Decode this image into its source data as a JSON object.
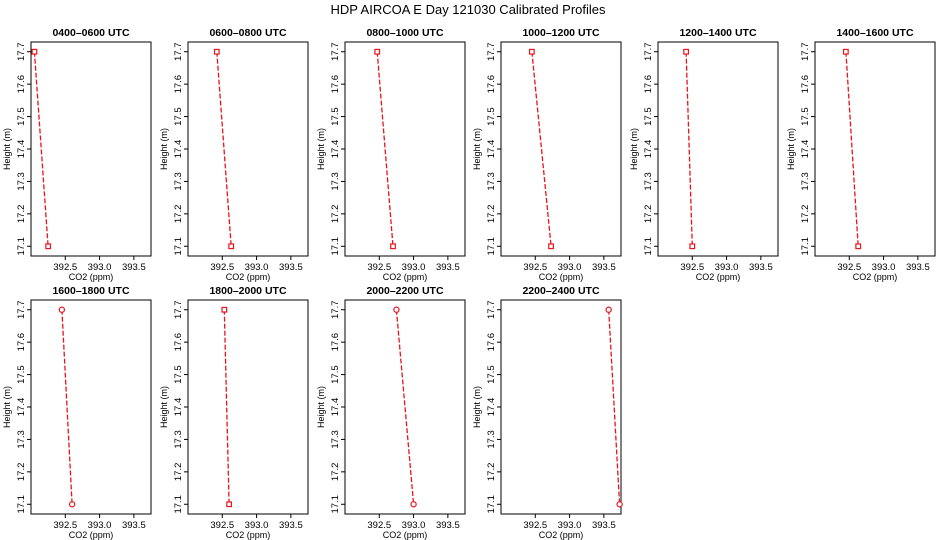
{
  "figure_title": "HDP AIRCOA E  Day 121030  Calibrated Profiles",
  "chart_data": [
    {
      "type": "line",
      "title": "0400–0600 UTC",
      "xlabel": "CO2 (ppm)",
      "ylabel": "Height (m)",
      "xlim": [
        392.0,
        393.75
      ],
      "ylim": [
        17.07,
        17.73
      ],
      "xticks": [
        "392.5",
        "393.0",
        "393.5"
      ],
      "yticks": [
        "17.1",
        "17.2",
        "17.3",
        "17.4",
        "17.5",
        "17.6",
        "17.7"
      ],
      "x": [
        392.05,
        392.25
      ],
      "y": [
        17.7,
        17.1
      ],
      "line_color": "#e8141c",
      "marker": "square"
    },
    {
      "type": "line",
      "title": "0600–0800 UTC",
      "xlabel": "CO2 (ppm)",
      "ylabel": "Height (m)",
      "xlim": [
        392.0,
        393.75
      ],
      "ylim": [
        17.07,
        17.73
      ],
      "xticks": [
        "392.5",
        "393.0",
        "393.5"
      ],
      "yticks": [
        "17.1",
        "17.2",
        "17.3",
        "17.4",
        "17.5",
        "17.6",
        "17.7"
      ],
      "x": [
        392.42,
        392.63
      ],
      "y": [
        17.7,
        17.1
      ],
      "line_color": "#e8141c",
      "marker": "square"
    },
    {
      "type": "line",
      "title": "0800–1000 UTC",
      "xlabel": "CO2 (ppm)",
      "ylabel": "Height (m)",
      "xlim": [
        392.0,
        393.75
      ],
      "ylim": [
        17.07,
        17.73
      ],
      "xticks": [
        "392.5",
        "393.0",
        "393.5"
      ],
      "yticks": [
        "17.1",
        "17.2",
        "17.3",
        "17.4",
        "17.5",
        "17.6",
        "17.7"
      ],
      "x": [
        392.47,
        392.7
      ],
      "y": [
        17.7,
        17.1
      ],
      "line_color": "#e8141c",
      "marker": "square"
    },
    {
      "type": "line",
      "title": "1000–1200 UTC",
      "xlabel": "CO2 (ppm)",
      "ylabel": "Height (m)",
      "xlim": [
        392.0,
        393.75
      ],
      "ylim": [
        17.07,
        17.73
      ],
      "xticks": [
        "392.5",
        "393.0",
        "393.5"
      ],
      "yticks": [
        "17.1",
        "17.2",
        "17.3",
        "17.4",
        "17.5",
        "17.6",
        "17.7"
      ],
      "x": [
        392.45,
        392.73
      ],
      "y": [
        17.7,
        17.1
      ],
      "line_color": "#e8141c",
      "marker": "square"
    },
    {
      "type": "line",
      "title": "1200–1400 UTC",
      "xlabel": "CO2 (ppm)",
      "ylabel": "Height (m)",
      "xlim": [
        392.0,
        393.75
      ],
      "ylim": [
        17.07,
        17.73
      ],
      "xticks": [
        "392.5",
        "393.0",
        "393.5"
      ],
      "yticks": [
        "17.1",
        "17.2",
        "17.3",
        "17.4",
        "17.5",
        "17.6",
        "17.7"
      ],
      "x": [
        392.41,
        392.5
      ],
      "y": [
        17.7,
        17.1
      ],
      "line_color": "#e8141c",
      "marker": "square"
    },
    {
      "type": "line",
      "title": "1400–1600 UTC",
      "xlabel": "CO2 (ppm)",
      "ylabel": "Height (m)",
      "xlim": [
        392.0,
        393.75
      ],
      "ylim": [
        17.07,
        17.73
      ],
      "xticks": [
        "392.5",
        "393.0",
        "393.5"
      ],
      "yticks": [
        "17.1",
        "17.2",
        "17.3",
        "17.4",
        "17.5",
        "17.6",
        "17.7"
      ],
      "x": [
        392.45,
        392.63
      ],
      "y": [
        17.7,
        17.1
      ],
      "line_color": "#e8141c",
      "marker": "square"
    },
    {
      "type": "line",
      "title": "1600–1800 UTC",
      "xlabel": "CO2 (ppm)",
      "ylabel": "Height (m)",
      "xlim": [
        392.0,
        393.75
      ],
      "ylim": [
        17.07,
        17.73
      ],
      "xticks": [
        "392.5",
        "393.0",
        "393.5"
      ],
      "yticks": [
        "17.1",
        "17.2",
        "17.3",
        "17.4",
        "17.5",
        "17.6",
        "17.7"
      ],
      "x": [
        392.45,
        392.6
      ],
      "y": [
        17.7,
        17.1
      ],
      "line_color": "#e8141c",
      "marker": "circle"
    },
    {
      "type": "line",
      "title": "1800–2000 UTC",
      "xlabel": "CO2 (ppm)",
      "ylabel": "Height (m)",
      "xlim": [
        392.0,
        393.75
      ],
      "ylim": [
        17.07,
        17.73
      ],
      "xticks": [
        "392.5",
        "393.0",
        "393.5"
      ],
      "yticks": [
        "17.1",
        "17.2",
        "17.3",
        "17.4",
        "17.5",
        "17.6",
        "17.7"
      ],
      "x": [
        392.53,
        392.6
      ],
      "y": [
        17.7,
        17.1
      ],
      "line_color": "#e8141c",
      "marker": "square"
    },
    {
      "type": "line",
      "title": "2000–2200 UTC",
      "xlabel": "CO2 (ppm)",
      "ylabel": "Height (m)",
      "xlim": [
        392.0,
        393.75
      ],
      "ylim": [
        17.07,
        17.73
      ],
      "xticks": [
        "392.5",
        "393.0",
        "393.5"
      ],
      "yticks": [
        "17.1",
        "17.2",
        "17.3",
        "17.4",
        "17.5",
        "17.6",
        "17.7"
      ],
      "x": [
        392.75,
        393.0
      ],
      "y": [
        17.7,
        17.1
      ],
      "line_color": "#e8141c",
      "marker": "circle"
    },
    {
      "type": "line",
      "title": "2200–2400 UTC",
      "xlabel": "CO2 (ppm)",
      "ylabel": "Height (m)",
      "xlim": [
        392.0,
        393.75
      ],
      "ylim": [
        17.07,
        17.73
      ],
      "xticks": [
        "392.5",
        "393.0",
        "393.5"
      ],
      "yticks": [
        "17.1",
        "17.2",
        "17.3",
        "17.4",
        "17.5",
        "17.6",
        "17.7"
      ],
      "x": [
        393.57,
        393.73
      ],
      "y": [
        17.7,
        17.1
      ],
      "line_color": "#e8141c",
      "marker": "circle"
    }
  ]
}
